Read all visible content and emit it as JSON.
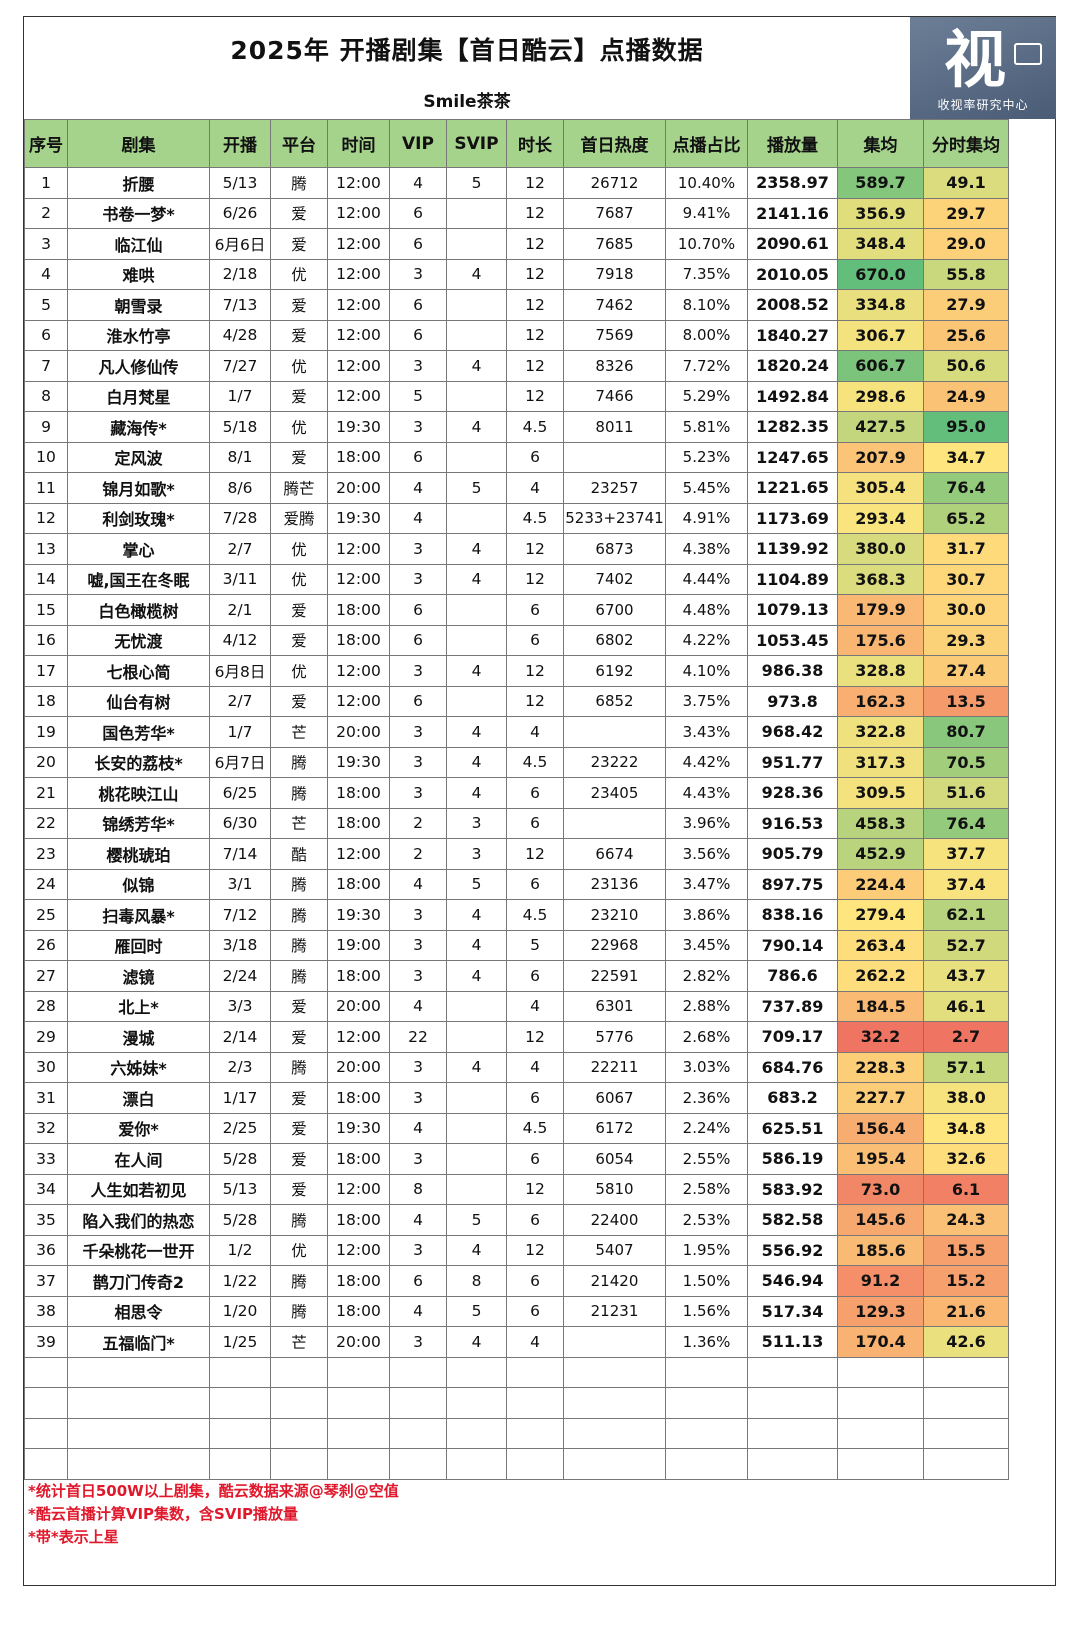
{
  "header": {
    "title": "2025年 开播剧集【首日酷云】点播数据",
    "subtitle": "Smile茶茶",
    "logo_text": "视",
    "logo_sub": "收视率研究中心"
  },
  "columns": [
    "序号",
    "剧集",
    "开播",
    "平台",
    "时间",
    "VIP",
    "SVIP",
    "时长",
    "首日热度",
    "点播占比",
    "播放量",
    "集均",
    "分时集均"
  ],
  "rows": [
    [
      "1",
      "折腰",
      "5/13",
      "腾",
      "12:00",
      "4",
      "5",
      "12",
      "26712",
      "10.40%",
      "2358.97",
      "589.7",
      "49.1"
    ],
    [
      "2",
      "书卷一梦*",
      "6/26",
      "爱",
      "12:00",
      "6",
      "",
      "12",
      "7687",
      "9.41%",
      "2141.16",
      "356.9",
      "29.7"
    ],
    [
      "3",
      "临江仙",
      "6月6日",
      "爱",
      "12:00",
      "6",
      "",
      "12",
      "7685",
      "10.70%",
      "2090.61",
      "348.4",
      "29.0"
    ],
    [
      "4",
      "难哄",
      "2/18",
      "优",
      "12:00",
      "3",
      "4",
      "12",
      "7918",
      "7.35%",
      "2010.05",
      "670.0",
      "55.8"
    ],
    [
      "5",
      "朝雪录",
      "7/13",
      "爱",
      "12:00",
      "6",
      "",
      "12",
      "7462",
      "8.10%",
      "2008.52",
      "334.8",
      "27.9"
    ],
    [
      "6",
      "淮水竹亭",
      "4/28",
      "爱",
      "12:00",
      "6",
      "",
      "12",
      "7569",
      "8.00%",
      "1840.27",
      "306.7",
      "25.6"
    ],
    [
      "7",
      "凡人修仙传",
      "7/27",
      "优",
      "12:00",
      "3",
      "4",
      "12",
      "8326",
      "7.72%",
      "1820.24",
      "606.7",
      "50.6"
    ],
    [
      "8",
      "白月梵星",
      "1/7",
      "爱",
      "12:00",
      "5",
      "",
      "12",
      "7466",
      "5.29%",
      "1492.84",
      "298.6",
      "24.9"
    ],
    [
      "9",
      "藏海传*",
      "5/18",
      "优",
      "19:30",
      "3",
      "4",
      "4.5",
      "8011",
      "5.81%",
      "1282.35",
      "427.5",
      "95.0"
    ],
    [
      "10",
      "定风波",
      "8/1",
      "爱",
      "18:00",
      "6",
      "",
      "6",
      "",
      "5.23%",
      "1247.65",
      "207.9",
      "34.7"
    ],
    [
      "11",
      "锦月如歌*",
      "8/6",
      "腾芒",
      "20:00",
      "4",
      "5",
      "4",
      "23257",
      "5.45%",
      "1221.65",
      "305.4",
      "76.4"
    ],
    [
      "12",
      "利剑玫瑰*",
      "7/28",
      "爱腾",
      "19:30",
      "4",
      "",
      "4.5",
      "5233+23741",
      "4.91%",
      "1173.69",
      "293.4",
      "65.2"
    ],
    [
      "13",
      "掌心",
      "2/7",
      "优",
      "12:00",
      "3",
      "4",
      "12",
      "6873",
      "4.38%",
      "1139.92",
      "380.0",
      "31.7"
    ],
    [
      "14",
      "嘘,国王在冬眠",
      "3/11",
      "优",
      "12:00",
      "3",
      "4",
      "12",
      "7402",
      "4.44%",
      "1104.89",
      "368.3",
      "30.7"
    ],
    [
      "15",
      "白色橄榄树",
      "2/1",
      "爱",
      "18:00",
      "6",
      "",
      "6",
      "6700",
      "4.48%",
      "1079.13",
      "179.9",
      "30.0"
    ],
    [
      "16",
      "无忧渡",
      "4/12",
      "爱",
      "18:00",
      "6",
      "",
      "6",
      "6802",
      "4.22%",
      "1053.45",
      "175.6",
      "29.3"
    ],
    [
      "17",
      "七根心简",
      "6月8日",
      "优",
      "12:00",
      "3",
      "4",
      "12",
      "6192",
      "4.10%",
      "986.38",
      "328.8",
      "27.4"
    ],
    [
      "18",
      "仙台有树",
      "2/7",
      "爱",
      "12:00",
      "6",
      "",
      "12",
      "6852",
      "3.75%",
      "973.8",
      "162.3",
      "13.5"
    ],
    [
      "19",
      "国色芳华*",
      "1/7",
      "芒",
      "20:00",
      "3",
      "4",
      "4",
      "",
      "3.43%",
      "968.42",
      "322.8",
      "80.7"
    ],
    [
      "20",
      "长安的荔枝*",
      "6月7日",
      "腾",
      "19:30",
      "3",
      "4",
      "4.5",
      "23222",
      "4.42%",
      "951.77",
      "317.3",
      "70.5"
    ],
    [
      "21",
      "桃花映江山",
      "6/25",
      "腾",
      "18:00",
      "3",
      "4",
      "6",
      "23405",
      "4.43%",
      "928.36",
      "309.5",
      "51.6"
    ],
    [
      "22",
      "锦绣芳华*",
      "6/30",
      "芒",
      "18:00",
      "2",
      "3",
      "6",
      "",
      "3.96%",
      "916.53",
      "458.3",
      "76.4"
    ],
    [
      "23",
      "樱桃琥珀",
      "7/14",
      "酷",
      "12:00",
      "2",
      "3",
      "12",
      "6674",
      "3.56%",
      "905.79",
      "452.9",
      "37.7"
    ],
    [
      "24",
      "似锦",
      "3/1",
      "腾",
      "18:00",
      "4",
      "5",
      "6",
      "23136",
      "3.47%",
      "897.75",
      "224.4",
      "37.4"
    ],
    [
      "25",
      "扫毒风暴*",
      "7/12",
      "腾",
      "19:30",
      "3",
      "4",
      "4.5",
      "23210",
      "3.86%",
      "838.16",
      "279.4",
      "62.1"
    ],
    [
      "26",
      "雁回时",
      "3/18",
      "腾",
      "19:00",
      "3",
      "4",
      "5",
      "22968",
      "3.45%",
      "790.14",
      "263.4",
      "52.7"
    ],
    [
      "27",
      "滤镜",
      "2/24",
      "腾",
      "18:00",
      "3",
      "4",
      "6",
      "22591",
      "2.82%",
      "786.6",
      "262.2",
      "43.7"
    ],
    [
      "28",
      "北上*",
      "3/3",
      "爱",
      "20:00",
      "4",
      "",
      "4",
      "6301",
      "2.88%",
      "737.89",
      "184.5",
      "46.1"
    ],
    [
      "29",
      "漫城",
      "2/14",
      "爱",
      "12:00",
      "22",
      "",
      "12",
      "5776",
      "2.68%",
      "709.17",
      "32.2",
      "2.7"
    ],
    [
      "30",
      "六姊妹*",
      "2/3",
      "腾",
      "20:00",
      "3",
      "4",
      "4",
      "22211",
      "3.03%",
      "684.76",
      "228.3",
      "57.1"
    ],
    [
      "31",
      "漂白",
      "1/17",
      "爱",
      "18:00",
      "3",
      "",
      "6",
      "6067",
      "2.36%",
      "683.2",
      "227.7",
      "38.0"
    ],
    [
      "32",
      "爱你*",
      "2/25",
      "爱",
      "19:30",
      "4",
      "",
      "4.5",
      "6172",
      "2.24%",
      "625.51",
      "156.4",
      "34.8"
    ],
    [
      "33",
      "在人间",
      "5/28",
      "爱",
      "18:00",
      "3",
      "",
      "6",
      "6054",
      "2.55%",
      "586.19",
      "195.4",
      "32.6"
    ],
    [
      "34",
      "人生如若初见",
      "5/13",
      "爱",
      "12:00",
      "8",
      "",
      "12",
      "5810",
      "2.58%",
      "583.92",
      "73.0",
      "6.1"
    ],
    [
      "35",
      "陷入我们的热恋",
      "5/28",
      "腾",
      "18:00",
      "4",
      "5",
      "6",
      "22400",
      "2.53%",
      "582.58",
      "145.6",
      "24.3"
    ],
    [
      "36",
      "千朵桃花一世开",
      "1/2",
      "优",
      "12:00",
      "3",
      "4",
      "12",
      "5407",
      "1.95%",
      "556.92",
      "185.6",
      "15.5"
    ],
    [
      "37",
      "鹊刀门传奇2",
      "1/22",
      "腾",
      "18:00",
      "6",
      "8",
      "6",
      "21420",
      "1.50%",
      "546.94",
      "91.2",
      "15.2"
    ],
    [
      "38",
      "相思令",
      "1/20",
      "腾",
      "18:00",
      "4",
      "5",
      "6",
      "21231",
      "1.56%",
      "517.34",
      "129.3",
      "21.6"
    ],
    [
      "39",
      "五福临门*",
      "1/25",
      "芒",
      "20:00",
      "3",
      "4",
      "4",
      "",
      "1.36%",
      "511.13",
      "170.4",
      "42.6"
    ]
  ],
  "empty_rows": 4,
  "notes": [
    "*统计首日500W以上剧集，酷云数据来源@琴刹@空值",
    "*酷云首播计算VIP集数，含SVIP播放量",
    "*带*表示上星"
  ],
  "colors": {
    "header_bg": "#a6d38c",
    "note_red": "#e0182b",
    "scale_low": "#f07462",
    "scale_mid": "#ffe57e",
    "scale_high": "#63be7b"
  }
}
